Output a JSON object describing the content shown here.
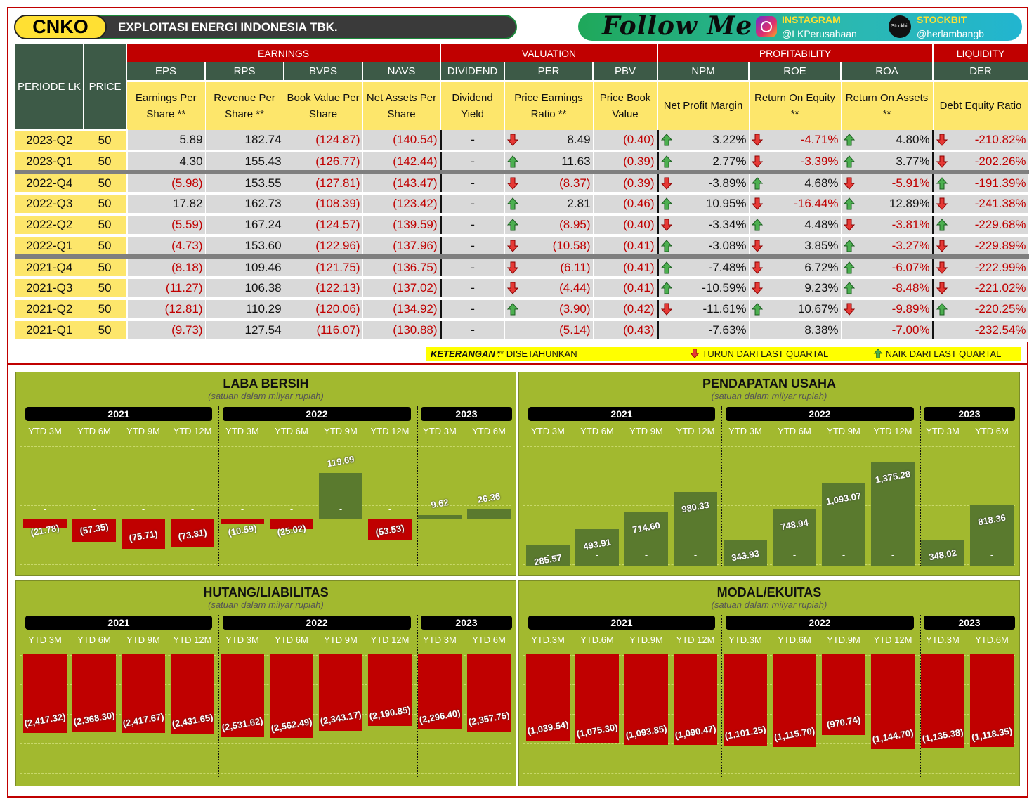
{
  "header": {
    "ticker": "CNKO",
    "company": "EXPLOITASI ENERGI INDONESIA TBK.",
    "follow": "Follow Me",
    "instagram_label": "INSTAGRAM",
    "instagram_handle": "@LKPerusahaan",
    "stockbit_label": "STOCKBIT",
    "stockbit_handle": "@herlambangb",
    "stockbit_icon_text": "Stockbit"
  },
  "table": {
    "groups": {
      "earnings": "EARNINGS",
      "valuation": "VALUATION",
      "profitability": "PROFITABILITY",
      "liquidity": "LIQUIDITY"
    },
    "periode": "PERIODE LK",
    "price": "PRICE",
    "cols": [
      "EPS",
      "RPS",
      "BVPS",
      "NAVS",
      "DIVIDEND",
      "PER",
      "PBV",
      "NPM",
      "ROE",
      "ROA",
      "DER"
    ],
    "desc": [
      "Earnings Per Share **",
      "Revenue Per Share **",
      "Book Value Per Share",
      "Net Assets Per Share",
      "Dividend Yield",
      "Price Earnings Ratio **",
      "Price Book Value",
      "Net Profit Margin",
      "Return On Equity **",
      "Return On Assets **",
      "Debt Equity Ratio"
    ],
    "rows": [
      {
        "period": "2023-Q2",
        "price": "50",
        "eps": "5.89",
        "rps": "182.74",
        "bvps": "(124.87)",
        "navs": "(140.54)",
        "div": "-",
        "per": "8.49",
        "per_dir": "down",
        "pbv": "(0.40)",
        "npm": "3.22%",
        "npm_dir": "up",
        "roe": "-4.71%",
        "roe_dir": "down",
        "roa": "4.80%",
        "roa_dir": "up",
        "der": "-210.82%",
        "der_dir": "down"
      },
      {
        "period": "2023-Q1",
        "price": "50",
        "eps": "4.30",
        "rps": "155.43",
        "bvps": "(126.77)",
        "navs": "(142.44)",
        "div": "-",
        "per": "11.63",
        "per_dir": "up",
        "pbv": "(0.39)",
        "npm": "2.77%",
        "npm_dir": "up",
        "roe": "-3.39%",
        "roe_dir": "down",
        "roa": "3.77%",
        "roa_dir": "up",
        "der": "-202.26%",
        "der_dir": "down"
      },
      {
        "period": "2022-Q4",
        "price": "50",
        "eps": "(5.98)",
        "rps": "153.55",
        "bvps": "(127.81)",
        "navs": "(143.47)",
        "div": "-",
        "per": "(8.37)",
        "per_dir": "down",
        "pbv": "(0.39)",
        "npm": "-3.89%",
        "npm_dir": "down",
        "roe": "4.68%",
        "roe_dir": "up",
        "roa": "-5.91%",
        "roa_dir": "down",
        "der": "-191.39%",
        "der_dir": "up"
      },
      {
        "period": "2022-Q3",
        "price": "50",
        "eps": "17.82",
        "rps": "162.73",
        "bvps": "(108.39)",
        "navs": "(123.42)",
        "div": "-",
        "per": "2.81",
        "per_dir": "up",
        "pbv": "(0.46)",
        "npm": "10.95%",
        "npm_dir": "up",
        "roe": "-16.44%",
        "roe_dir": "down",
        "roa": "12.89%",
        "roa_dir": "up",
        "der": "-241.38%",
        "der_dir": "down"
      },
      {
        "period": "2022-Q2",
        "price": "50",
        "eps": "(5.59)",
        "rps": "167.24",
        "bvps": "(124.57)",
        "navs": "(139.59)",
        "div": "-",
        "per": "(8.95)",
        "per_dir": "up",
        "pbv": "(0.40)",
        "npm": "-3.34%",
        "npm_dir": "down",
        "roe": "4.48%",
        "roe_dir": "up",
        "roa": "-3.81%",
        "roa_dir": "down",
        "der": "-229.68%",
        "der_dir": "up"
      },
      {
        "period": "2022-Q1",
        "price": "50",
        "eps": "(4.73)",
        "rps": "153.60",
        "bvps": "(122.96)",
        "navs": "(137.96)",
        "div": "-",
        "per": "(10.58)",
        "per_dir": "down",
        "pbv": "(0.41)",
        "npm": "-3.08%",
        "npm_dir": "up",
        "roe": "3.85%",
        "roe_dir": "down",
        "roa": "-3.27%",
        "roa_dir": "up",
        "der": "-229.89%",
        "der_dir": "down"
      },
      {
        "period": "2021-Q4",
        "price": "50",
        "eps": "(8.18)",
        "rps": "109.46",
        "bvps": "(121.75)",
        "navs": "(136.75)",
        "div": "-",
        "per": "(6.11)",
        "per_dir": "down",
        "pbv": "(0.41)",
        "npm": "-7.48%",
        "npm_dir": "up",
        "roe": "6.72%",
        "roe_dir": "down",
        "roa": "-6.07%",
        "roa_dir": "up",
        "der": "-222.99%",
        "der_dir": "down"
      },
      {
        "period": "2021-Q3",
        "price": "50",
        "eps": "(11.27)",
        "rps": "106.38",
        "bvps": "(122.13)",
        "navs": "(137.02)",
        "div": "-",
        "per": "(4.44)",
        "per_dir": "down",
        "pbv": "(0.41)",
        "npm": "-10.59%",
        "npm_dir": "up",
        "roe": "9.23%",
        "roe_dir": "down",
        "roa": "-8.48%",
        "roa_dir": "up",
        "der": "-221.02%",
        "der_dir": "down"
      },
      {
        "period": "2021-Q2",
        "price": "50",
        "eps": "(12.81)",
        "rps": "110.29",
        "bvps": "(120.06)",
        "navs": "(134.92)",
        "div": "-",
        "per": "(3.90)",
        "per_dir": "up",
        "pbv": "(0.42)",
        "npm": "-11.61%",
        "npm_dir": "down",
        "roe": "10.67%",
        "roe_dir": "up",
        "roa": "-9.89%",
        "roa_dir": "down",
        "der": "-220.25%",
        "der_dir": "up"
      },
      {
        "period": "2021-Q1",
        "price": "50",
        "eps": "(9.73)",
        "rps": "127.54",
        "bvps": "(116.07)",
        "navs": "(130.88)",
        "div": "-",
        "per": "(5.14)",
        "per_dir": "",
        "pbv": "(0.43)",
        "npm": "-7.63%",
        "npm_dir": "",
        "roe": "8.38%",
        "roe_dir": "",
        "roa": "-7.00%",
        "roa_dir": "",
        "der": "-232.54%",
        "der_dir": ""
      }
    ]
  },
  "legend": {
    "keterangan": "KETERANGAN :",
    "annualized": "** DISETAHUNKAN",
    "down": "TURUN DARI LAST QUARTAL",
    "up": "NAIK DARI LAST QUARTAL"
  },
  "colors": {
    "up": "#4caf50",
    "down": "#e53935"
  },
  "chart_data": [
    {
      "type": "bar",
      "title": "LABA BERSIH",
      "subtitle": "(satuan dalam milyar rupiah)",
      "years": [
        "2021",
        "2022",
        "2023"
      ],
      "categories": [
        "YTD 3M",
        "YTD 6M",
        "YTD 9M",
        "YTD 12M",
        "YTD 3M",
        "YTD 6M",
        "YTD 9M",
        "YTD 12M",
        "YTD 3M",
        "YTD 6M"
      ],
      "values": [
        -21.78,
        -57.35,
        -75.71,
        -73.31,
        -10.59,
        -25.02,
        119.69,
        -53.53,
        9.62,
        26.36
      ],
      "labels": [
        "(21.78)",
        "(57.35)",
        "(75.71)",
        "(73.31)",
        "(10.59)",
        "(25.02)",
        "119.69",
        "(53.53)",
        "9.62",
        "26.36"
      ]
    },
    {
      "type": "bar",
      "title": "PENDAPATAN USAHA",
      "subtitle": "(satuan dalam milyar rupiah)",
      "years": [
        "2021",
        "2022",
        "2023"
      ],
      "categories": [
        "YTD 3M",
        "YTD 6M",
        "YTD 9M",
        "YTD 12M",
        "YTD 3M",
        "YTD 6M",
        "YTD 9M",
        "YTD 12M",
        "YTD 3M",
        "YTD 6M"
      ],
      "values": [
        285.57,
        493.91,
        714.6,
        980.33,
        343.93,
        748.94,
        1093.07,
        1375.28,
        348.02,
        818.36
      ],
      "labels": [
        "285.57",
        "493.91",
        "714.60",
        "980.33",
        "343.93",
        "748.94",
        "1,093.07",
        "1,375.28",
        "348.02",
        "818.36"
      ]
    },
    {
      "type": "bar",
      "title": "HUTANG/LIABILITAS",
      "subtitle": "(satuan dalam milyar rupiah)",
      "years": [
        "2021",
        "2022",
        "2023"
      ],
      "categories": [
        "YTD 3M",
        "YTD 6M",
        "YTD 9M",
        "YTD 12M",
        "YTD 3M",
        "YTD 6M",
        "YTD 9M",
        "YTD 12M",
        "YTD 3M",
        "YTD 6M"
      ],
      "values": [
        -2417.32,
        -2368.3,
        -2417.67,
        -2431.65,
        -2531.62,
        -2562.49,
        -2343.17,
        -2190.85,
        -2296.4,
        -2357.75
      ],
      "labels": [
        "(2,417.32)",
        "(2,368.30)",
        "(2,417.67)",
        "(2,431.65)",
        "(2,531.62)",
        "(2,562.49)",
        "(2,343.17)",
        "(2,190.85)",
        "(2,296.40)",
        "(2,357.75)"
      ]
    },
    {
      "type": "bar",
      "title": "MODAL/EKUITAS",
      "subtitle": "(satuan dalam milyar rupiah)",
      "years": [
        "2021",
        "2022",
        "2023"
      ],
      "categories": [
        "YTD.3M",
        "YTD.6M",
        "YTD.9M",
        "YTD 12M",
        "YTD.3M",
        "YTD.6M",
        "YTD.9M",
        "YTD 12M",
        "YTD.3M",
        "YTD.6M"
      ],
      "values": [
        -1039.54,
        -1075.3,
        -1093.85,
        -1090.47,
        -1101.25,
        -1115.7,
        -970.74,
        -1144.7,
        -1135.38,
        -1118.35
      ],
      "labels": [
        "(1,039.54)",
        "(1,075.30)",
        "(1,093.85)",
        "(1,090.47)",
        "(1,101.25)",
        "(1,115.70)",
        "(970.74)",
        "(1,144.70)",
        "(1,135.38)",
        "(1,118.35)"
      ]
    }
  ]
}
